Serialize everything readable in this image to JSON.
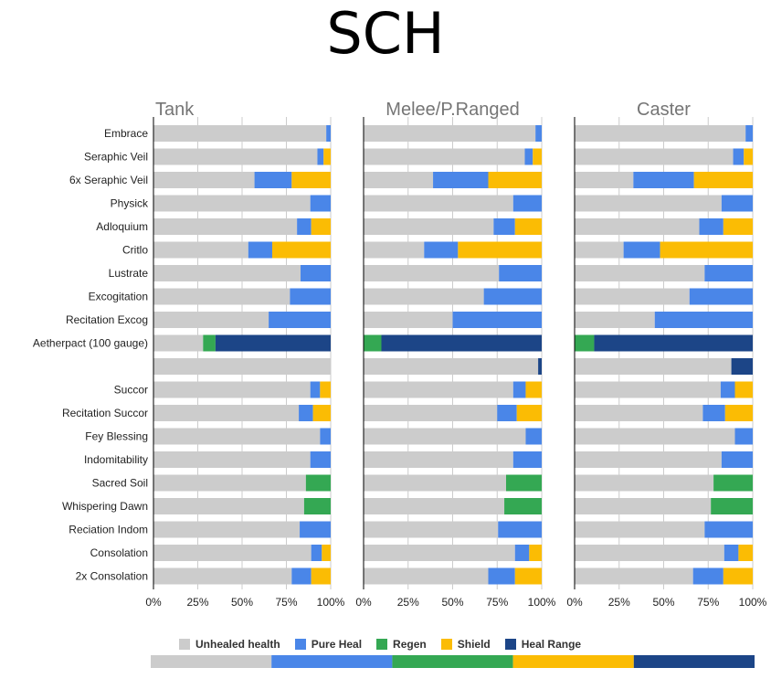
{
  "title": "SCH",
  "legend": [
    {
      "label": "Unhealed health",
      "color": "#cccccc"
    },
    {
      "label": "Pure Heal",
      "color": "#4a86e8"
    },
    {
      "label": "Regen",
      "color": "#34a853"
    },
    {
      "label": "Shield",
      "color": "#fbbc04"
    },
    {
      "label": "Heal Range",
      "color": "#1c4587"
    }
  ],
  "colors": {
    "unhealed": "#cccccc",
    "pure": "#4a86e8",
    "regen": "#34a853",
    "shield": "#fbbc04",
    "range": "#1c4587",
    "panel_title": "#757575",
    "grid": "#cccccc",
    "axis": "#000000"
  },
  "chart_data": {
    "type": "bar",
    "orientation": "horizontal",
    "stacked": "percent",
    "categories": [
      "Embrace",
      "Seraphic Veil",
      "6x Seraphic Veil",
      "Physick",
      "Adloquium",
      "Critlo",
      "Lustrate",
      "Excogitation",
      "Recitation Excog",
      "Aetherpact (100 gauge)",
      "",
      "Succor",
      "Recitation Succor",
      "Fey Blessing",
      "Indomitability",
      "Sacred Soil",
      "Whispering Dawn",
      "Reciation Indom",
      "Consolation",
      "2x Consolation"
    ],
    "xlim": [
      0,
      100
    ],
    "x_ticks": [
      "0%",
      "25%",
      "50%",
      "75%",
      "100%"
    ],
    "grid": true,
    "legend_position": "bottom",
    "series_names": [
      "Unhealed health",
      "Pure Heal",
      "Regen",
      "Shield",
      "Heal Range"
    ],
    "panels": [
      {
        "title": "Tank",
        "rows": [
          [
            97.5,
            2.5,
            0,
            0,
            0
          ],
          [
            92.5,
            3.5,
            0,
            4,
            0
          ],
          [
            57,
            21,
            0,
            22,
            0
          ],
          [
            88.5,
            11.5,
            0,
            0,
            0
          ],
          [
            81,
            8,
            0,
            11,
            0
          ],
          [
            53.5,
            13.5,
            0,
            33,
            0
          ],
          [
            83,
            17,
            0,
            0,
            0
          ],
          [
            77,
            23,
            0,
            0,
            0
          ],
          [
            65,
            35,
            0,
            0,
            0
          ],
          [
            28,
            0,
            7,
            0,
            65
          ],
          [
            100,
            0,
            0,
            0,
            0
          ],
          [
            88.5,
            5.5,
            0,
            6,
            0
          ],
          [
            82,
            8,
            0,
            10,
            0
          ],
          [
            94,
            6,
            0,
            0,
            0
          ],
          [
            88.5,
            11.5,
            0,
            0,
            0
          ],
          [
            86,
            0,
            14,
            0,
            0
          ],
          [
            85,
            0,
            15,
            0,
            0
          ],
          [
            82.5,
            17.5,
            0,
            0,
            0
          ],
          [
            89,
            6,
            0,
            5,
            0
          ],
          [
            78,
            11,
            0,
            11,
            0
          ]
        ]
      },
      {
        "title": "Melee/P.Ranged",
        "rows": [
          [
            96.5,
            3.5,
            0,
            0,
            0
          ],
          [
            90.5,
            4.5,
            0,
            5,
            0
          ],
          [
            39,
            31,
            0,
            30,
            0
          ],
          [
            84,
            16,
            0,
            0,
            0
          ],
          [
            73,
            12,
            0,
            15,
            0
          ],
          [
            34,
            19,
            0,
            47,
            0
          ],
          [
            76,
            24,
            0,
            0,
            0
          ],
          [
            67.5,
            32.5,
            0,
            0,
            0
          ],
          [
            50,
            50,
            0,
            0,
            0
          ],
          [
            0,
            0,
            10,
            0,
            90
          ],
          [
            98,
            0,
            0,
            0,
            2
          ],
          [
            84,
            7,
            0,
            9,
            0
          ],
          [
            75,
            11,
            0,
            14,
            0
          ],
          [
            91,
            9,
            0,
            0,
            0
          ],
          [
            84,
            16,
            0,
            0,
            0
          ],
          [
            80,
            0,
            20,
            0,
            0
          ],
          [
            79,
            0,
            21,
            0,
            0
          ],
          [
            75.5,
            24.5,
            0,
            0,
            0
          ],
          [
            85,
            8,
            0,
            7,
            0
          ],
          [
            70,
            15,
            0,
            15,
            0
          ]
        ]
      },
      {
        "title": "Caster",
        "rows": [
          [
            96,
            4,
            0,
            0,
            0
          ],
          [
            89,
            6,
            0,
            5,
            0
          ],
          [
            33,
            34,
            0,
            33,
            0
          ],
          [
            82.5,
            17.5,
            0,
            0,
            0
          ],
          [
            70,
            13.5,
            0,
            16.5,
            0
          ],
          [
            27.5,
            20.5,
            0,
            52,
            0
          ],
          [
            73,
            27,
            0,
            0,
            0
          ],
          [
            64.5,
            35.5,
            0,
            0,
            0
          ],
          [
            45,
            55,
            0,
            0,
            0
          ],
          [
            0,
            0,
            11,
            0,
            89
          ],
          [
            88,
            0,
            0,
            0,
            12
          ],
          [
            82,
            8,
            0,
            10,
            0
          ],
          [
            72,
            12.5,
            0,
            15.5,
            0
          ],
          [
            90,
            10,
            0,
            0,
            0
          ],
          [
            82.5,
            17.5,
            0,
            0,
            0
          ],
          [
            78,
            0,
            22,
            0,
            0
          ],
          [
            76.5,
            0,
            23.5,
            0,
            0
          ],
          [
            73,
            27,
            0,
            0,
            0
          ],
          [
            84,
            8,
            0,
            8,
            0
          ],
          [
            66.5,
            17,
            0,
            16.5,
            0
          ]
        ]
      }
    ]
  }
}
